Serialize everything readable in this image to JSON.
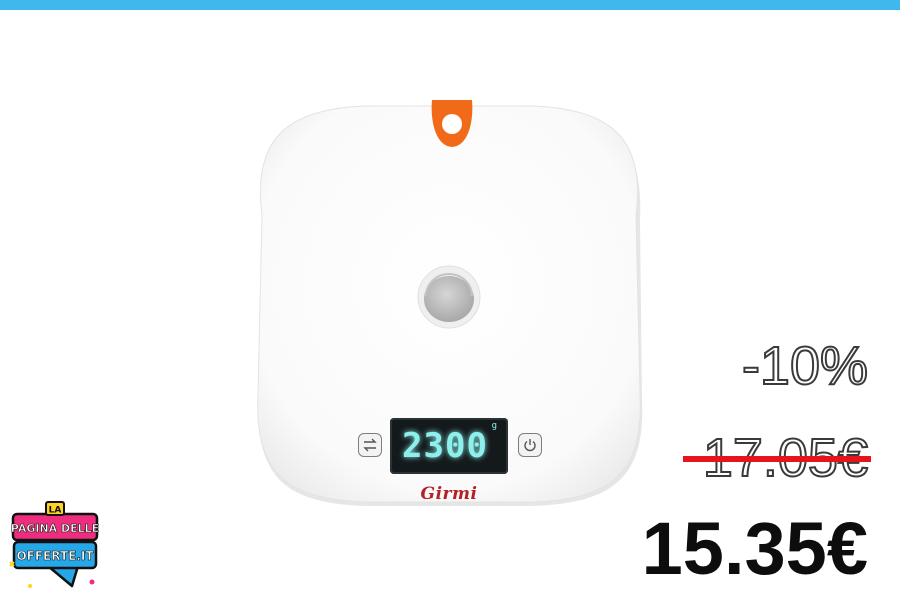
{
  "colors": {
    "top_bar": "#3fb8ee",
    "scale_body": "#fbfbfb",
    "handle": "#f06a1a",
    "display_digits": "#8ef0ec",
    "brand": "#b52025",
    "strike": "#e8141b",
    "logo_pink": "#ee2d7e",
    "logo_blue": "#25a7e8",
    "logo_yellow": "#ffd321"
  },
  "product": {
    "brand": "Girmi",
    "display_value": "2300",
    "display_unit": "g",
    "icons": {
      "tare": "swap-arrows-icon",
      "power": "power-icon"
    }
  },
  "pricing": {
    "discount": "-10%",
    "old_price": "17.05€",
    "new_price": "15.35€"
  },
  "logo": {
    "line1": "LA",
    "line2": "PAGINA DELLE",
    "line3": "OFFERTE.IT"
  }
}
